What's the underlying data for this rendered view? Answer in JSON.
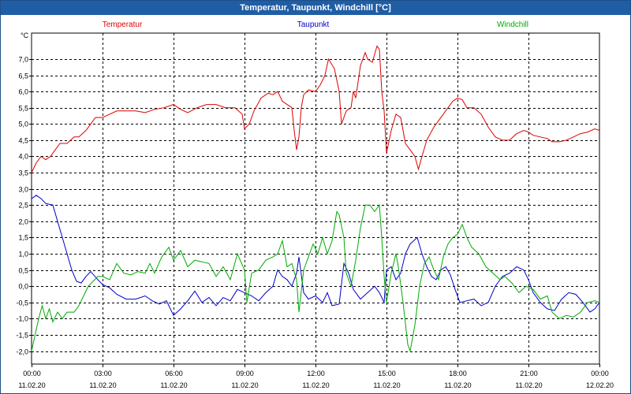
{
  "window": {
    "title": "Temperatur, Taupunkt, Windchill [°C]"
  },
  "chart_data": {
    "type": "line",
    "unit_label": "°C",
    "ylim": [
      -2.4,
      7.8
    ],
    "y_ticks": [
      7.0,
      6.5,
      6.0,
      5.5,
      5.0,
      4.5,
      4.0,
      3.5,
      3.0,
      2.5,
      2.0,
      1.5,
      1.0,
      0.5,
      0.0,
      -0.5,
      -1.0,
      -1.5,
      -2.0
    ],
    "y_tick_labels": [
      "7,0",
      "6,5",
      "6,0",
      "5,5",
      "5,0",
      "4,5",
      "4,0",
      "3,5",
      "3,0",
      "2,5",
      "2,0",
      "1,5",
      "1,0",
      "0,5",
      "0,0",
      "-0,5",
      "-1,0",
      "-1,5",
      "-2,0"
    ],
    "xlim": [
      0,
      24
    ],
    "x_ticks": [
      {
        "h": 0,
        "time": "00:00",
        "date": "11.02.20"
      },
      {
        "h": 3,
        "time": "03:00",
        "date": "11.02.20"
      },
      {
        "h": 6,
        "time": "06:00",
        "date": "11.02.20"
      },
      {
        "h": 9,
        "time": "09:00",
        "date": "11.02.20"
      },
      {
        "h": 12,
        "time": "12:00",
        "date": "11.02.20"
      },
      {
        "h": 15,
        "time": "15:00",
        "date": "11.02.20"
      },
      {
        "h": 18,
        "time": "18:00",
        "date": "11.02.20"
      },
      {
        "h": 21,
        "time": "21:00",
        "date": "11.02.20"
      },
      {
        "h": 24,
        "time": "00:00",
        "date": "12.02.20"
      }
    ],
    "grid": true,
    "legend_position": "top",
    "series": [
      {
        "name": "Temperatur",
        "color": "#dd0000",
        "points": [
          [
            0,
            3.5
          ],
          [
            0.2,
            3.8
          ],
          [
            0.4,
            4.0
          ],
          [
            0.6,
            3.9
          ],
          [
            0.8,
            4.0
          ],
          [
            1.0,
            4.2
          ],
          [
            1.2,
            4.4
          ],
          [
            1.5,
            4.4
          ],
          [
            1.8,
            4.6
          ],
          [
            2.0,
            4.6
          ],
          [
            2.3,
            4.8
          ],
          [
            2.5,
            5.0
          ],
          [
            2.7,
            5.2
          ],
          [
            3.0,
            5.2
          ],
          [
            3.3,
            5.3
          ],
          [
            3.6,
            5.4
          ],
          [
            4.0,
            5.4
          ],
          [
            4.4,
            5.4
          ],
          [
            4.8,
            5.35
          ],
          [
            5.2,
            5.45
          ],
          [
            5.6,
            5.5
          ],
          [
            6.0,
            5.6
          ],
          [
            6.3,
            5.45
          ],
          [
            6.6,
            5.35
          ],
          [
            7.0,
            5.5
          ],
          [
            7.4,
            5.6
          ],
          [
            7.8,
            5.6
          ],
          [
            8.2,
            5.5
          ],
          [
            8.6,
            5.5
          ],
          [
            8.9,
            5.3
          ],
          [
            9.0,
            4.85
          ],
          [
            9.2,
            5.0
          ],
          [
            9.4,
            5.4
          ],
          [
            9.7,
            5.8
          ],
          [
            10.0,
            5.95
          ],
          [
            10.2,
            5.9
          ],
          [
            10.4,
            6.0
          ],
          [
            10.6,
            5.7
          ],
          [
            10.8,
            5.6
          ],
          [
            11.0,
            5.5
          ],
          [
            11.1,
            4.8
          ],
          [
            11.2,
            4.2
          ],
          [
            11.3,
            4.6
          ],
          [
            11.4,
            5.5
          ],
          [
            11.5,
            5.9
          ],
          [
            11.7,
            6.05
          ],
          [
            12.0,
            6.0
          ],
          [
            12.2,
            6.2
          ],
          [
            12.4,
            6.5
          ],
          [
            12.55,
            7.0
          ],
          [
            12.8,
            6.7
          ],
          [
            13.0,
            6.0
          ],
          [
            13.1,
            5.0
          ],
          [
            13.3,
            5.4
          ],
          [
            13.5,
            5.5
          ],
          [
            13.6,
            6.0
          ],
          [
            13.7,
            5.8
          ],
          [
            13.9,
            6.8
          ],
          [
            14.1,
            7.2
          ],
          [
            14.2,
            7.0
          ],
          [
            14.4,
            6.9
          ],
          [
            14.6,
            7.4
          ],
          [
            14.7,
            7.3
          ],
          [
            14.8,
            6.0
          ],
          [
            14.9,
            5.4
          ],
          [
            15.0,
            4.1
          ],
          [
            15.2,
            4.8
          ],
          [
            15.4,
            5.3
          ],
          [
            15.6,
            5.2
          ],
          [
            15.8,
            4.4
          ],
          [
            16.0,
            4.2
          ],
          [
            16.2,
            4.0
          ],
          [
            16.35,
            3.6
          ],
          [
            16.5,
            4.0
          ],
          [
            16.7,
            4.5
          ],
          [
            17.0,
            4.9
          ],
          [
            17.3,
            5.2
          ],
          [
            17.6,
            5.5
          ],
          [
            17.8,
            5.7
          ],
          [
            18.0,
            5.8
          ],
          [
            18.2,
            5.75
          ],
          [
            18.4,
            5.5
          ],
          [
            18.7,
            5.5
          ],
          [
            19.0,
            5.3
          ],
          [
            19.3,
            4.9
          ],
          [
            19.6,
            4.6
          ],
          [
            19.9,
            4.5
          ],
          [
            20.2,
            4.5
          ],
          [
            20.5,
            4.7
          ],
          [
            20.8,
            4.8
          ],
          [
            21.0,
            4.75
          ],
          [
            21.2,
            4.65
          ],
          [
            21.5,
            4.6
          ],
          [
            21.8,
            4.55
          ],
          [
            22.0,
            4.45
          ],
          [
            22.3,
            4.45
          ],
          [
            22.6,
            4.5
          ],
          [
            22.9,
            4.6
          ],
          [
            23.2,
            4.7
          ],
          [
            23.5,
            4.75
          ],
          [
            23.8,
            4.85
          ],
          [
            24,
            4.8
          ]
        ]
      },
      {
        "name": "Taupunkt",
        "color": "#0000cc",
        "points": [
          [
            0,
            2.7
          ],
          [
            0.2,
            2.8
          ],
          [
            0.4,
            2.7
          ],
          [
            0.6,
            2.55
          ],
          [
            0.9,
            2.5
          ],
          [
            1.1,
            2.0
          ],
          [
            1.3,
            1.5
          ],
          [
            1.5,
            1.0
          ],
          [
            1.7,
            0.5
          ],
          [
            1.9,
            0.15
          ],
          [
            2.1,
            0.1
          ],
          [
            2.3,
            0.3
          ],
          [
            2.5,
            0.45
          ],
          [
            2.8,
            0.2
          ],
          [
            3.0,
            0.05
          ],
          [
            3.3,
            -0.05
          ],
          [
            3.6,
            -0.25
          ],
          [
            4.0,
            -0.4
          ],
          [
            4.4,
            -0.4
          ],
          [
            4.8,
            -0.3
          ],
          [
            5.1,
            -0.45
          ],
          [
            5.4,
            -0.55
          ],
          [
            5.7,
            -0.45
          ],
          [
            6.0,
            -0.9
          ],
          [
            6.3,
            -0.7
          ],
          [
            6.6,
            -0.45
          ],
          [
            6.9,
            -0.15
          ],
          [
            7.2,
            -0.5
          ],
          [
            7.5,
            -0.35
          ],
          [
            7.8,
            -0.6
          ],
          [
            8.1,
            -0.35
          ],
          [
            8.4,
            -0.45
          ],
          [
            8.7,
            -0.1
          ],
          [
            9.0,
            -0.2
          ],
          [
            9.3,
            -0.3
          ],
          [
            9.6,
            -0.45
          ],
          [
            9.9,
            -0.2
          ],
          [
            10.2,
            0.0
          ],
          [
            10.4,
            0.5
          ],
          [
            10.6,
            0.3
          ],
          [
            10.8,
            0.2
          ],
          [
            11.0,
            0.0
          ],
          [
            11.2,
            0.4
          ],
          [
            11.3,
            0.9
          ],
          [
            11.5,
            -0.2
          ],
          [
            11.7,
            -0.4
          ],
          [
            12.0,
            -0.3
          ],
          [
            12.3,
            -0.5
          ],
          [
            12.5,
            -0.2
          ],
          [
            12.7,
            -0.6
          ],
          [
            13.0,
            -0.55
          ],
          [
            13.2,
            0.7
          ],
          [
            13.4,
            0.4
          ],
          [
            13.6,
            -0.1
          ],
          [
            13.9,
            -0.4
          ],
          [
            14.2,
            -0.2
          ],
          [
            14.5,
            0.0
          ],
          [
            14.7,
            -0.2
          ],
          [
            14.9,
            -0.5
          ],
          [
            15.0,
            0.5
          ],
          [
            15.2,
            0.6
          ],
          [
            15.4,
            0.2
          ],
          [
            15.6,
            0.4
          ],
          [
            15.8,
            1.0
          ],
          [
            16.0,
            1.3
          ],
          [
            16.3,
            1.5
          ],
          [
            16.5,
            1.0
          ],
          [
            16.7,
            0.6
          ],
          [
            16.9,
            0.3
          ],
          [
            17.1,
            0.2
          ],
          [
            17.3,
            0.5
          ],
          [
            17.5,
            0.6
          ],
          [
            17.7,
            0.35
          ],
          [
            17.9,
            -0.1
          ],
          [
            18.1,
            -0.5
          ],
          [
            18.4,
            -0.45
          ],
          [
            18.7,
            -0.4
          ],
          [
            19.0,
            -0.6
          ],
          [
            19.3,
            -0.5
          ],
          [
            19.6,
            0.0
          ],
          [
            19.9,
            0.3
          ],
          [
            20.2,
            0.4
          ],
          [
            20.5,
            0.6
          ],
          [
            20.8,
            0.5
          ],
          [
            21.0,
            0.2
          ],
          [
            21.2,
            -0.2
          ],
          [
            21.5,
            -0.5
          ],
          [
            21.8,
            -0.7
          ],
          [
            22.1,
            -0.75
          ],
          [
            22.4,
            -0.4
          ],
          [
            22.7,
            -0.2
          ],
          [
            23.0,
            -0.25
          ],
          [
            23.3,
            -0.5
          ],
          [
            23.6,
            -0.8
          ],
          [
            23.8,
            -0.7
          ],
          [
            24,
            -0.5
          ]
        ]
      },
      {
        "name": "Windchill",
        "color": "#00aa00",
        "points": [
          [
            0,
            -2.0
          ],
          [
            0.15,
            -1.5
          ],
          [
            0.3,
            -1.0
          ],
          [
            0.45,
            -0.6
          ],
          [
            0.6,
            -1.0
          ],
          [
            0.75,
            -0.7
          ],
          [
            0.9,
            -1.1
          ],
          [
            1.1,
            -0.8
          ],
          [
            1.3,
            -1.0
          ],
          [
            1.5,
            -0.8
          ],
          [
            1.8,
            -0.8
          ],
          [
            2.0,
            -0.6
          ],
          [
            2.2,
            -0.3
          ],
          [
            2.4,
            0.0
          ],
          [
            2.6,
            0.15
          ],
          [
            2.8,
            0.3
          ],
          [
            3.0,
            0.3
          ],
          [
            3.3,
            0.2
          ],
          [
            3.6,
            0.7
          ],
          [
            3.9,
            0.4
          ],
          [
            4.2,
            0.35
          ],
          [
            4.5,
            0.45
          ],
          [
            4.8,
            0.4
          ],
          [
            5.0,
            0.7
          ],
          [
            5.2,
            0.4
          ],
          [
            5.5,
            0.9
          ],
          [
            5.8,
            1.2
          ],
          [
            6.0,
            0.8
          ],
          [
            6.3,
            1.1
          ],
          [
            6.6,
            0.6
          ],
          [
            6.9,
            0.8
          ],
          [
            7.2,
            0.75
          ],
          [
            7.5,
            0.7
          ],
          [
            7.8,
            0.3
          ],
          [
            8.1,
            0.6
          ],
          [
            8.4,
            0.2
          ],
          [
            8.7,
            1.0
          ],
          [
            9.0,
            0.5
          ],
          [
            9.1,
            -0.5
          ],
          [
            9.3,
            0.4
          ],
          [
            9.6,
            0.5
          ],
          [
            9.9,
            0.8
          ],
          [
            10.2,
            0.9
          ],
          [
            10.4,
            1.0
          ],
          [
            10.6,
            1.4
          ],
          [
            10.8,
            0.6
          ],
          [
            11.0,
            0.7
          ],
          [
            11.2,
            0.2
          ],
          [
            11.3,
            -0.8
          ],
          [
            11.5,
            0.5
          ],
          [
            11.7,
            0.9
          ],
          [
            11.9,
            1.3
          ],
          [
            12.1,
            1.0
          ],
          [
            12.3,
            1.5
          ],
          [
            12.5,
            1.0
          ],
          [
            12.7,
            1.4
          ],
          [
            12.9,
            2.3
          ],
          [
            13.0,
            2.2
          ],
          [
            13.2,
            1.5
          ],
          [
            13.3,
            0.4
          ],
          [
            13.5,
            0.0
          ],
          [
            13.7,
            0.8
          ],
          [
            13.9,
            1.8
          ],
          [
            14.1,
            2.5
          ],
          [
            14.3,
            2.5
          ],
          [
            14.5,
            2.3
          ],
          [
            14.7,
            2.5
          ],
          [
            14.8,
            1.5
          ],
          [
            14.9,
            0.3
          ],
          [
            15.0,
            -0.5
          ],
          [
            15.2,
            0.4
          ],
          [
            15.4,
            1.0
          ],
          [
            15.5,
            0.6
          ],
          [
            15.7,
            -0.5
          ],
          [
            15.9,
            -1.8
          ],
          [
            16.0,
            -2.0
          ],
          [
            16.2,
            -1.2
          ],
          [
            16.4,
            0.0
          ],
          [
            16.6,
            0.7
          ],
          [
            16.8,
            0.9
          ],
          [
            17.0,
            0.5
          ],
          [
            17.2,
            0.2
          ],
          [
            17.4,
            0.9
          ],
          [
            17.6,
            1.3
          ],
          [
            17.8,
            1.5
          ],
          [
            18.0,
            1.6
          ],
          [
            18.2,
            1.9
          ],
          [
            18.4,
            1.5
          ],
          [
            18.6,
            1.2
          ],
          [
            18.9,
            1.0
          ],
          [
            19.2,
            0.6
          ],
          [
            19.5,
            0.4
          ],
          [
            19.8,
            0.2
          ],
          [
            20.0,
            0.3
          ],
          [
            20.3,
            0.1
          ],
          [
            20.6,
            -0.2
          ],
          [
            20.9,
            0.0
          ],
          [
            21.2,
            -0.1
          ],
          [
            21.5,
            -0.4
          ],
          [
            21.8,
            -0.3
          ],
          [
            22.0,
            -0.8
          ],
          [
            22.3,
            -1.0
          ],
          [
            22.6,
            -0.9
          ],
          [
            22.9,
            -0.95
          ],
          [
            23.2,
            -0.8
          ],
          [
            23.5,
            -0.5
          ],
          [
            23.8,
            -0.45
          ],
          [
            24,
            -0.5
          ]
        ]
      }
    ]
  }
}
